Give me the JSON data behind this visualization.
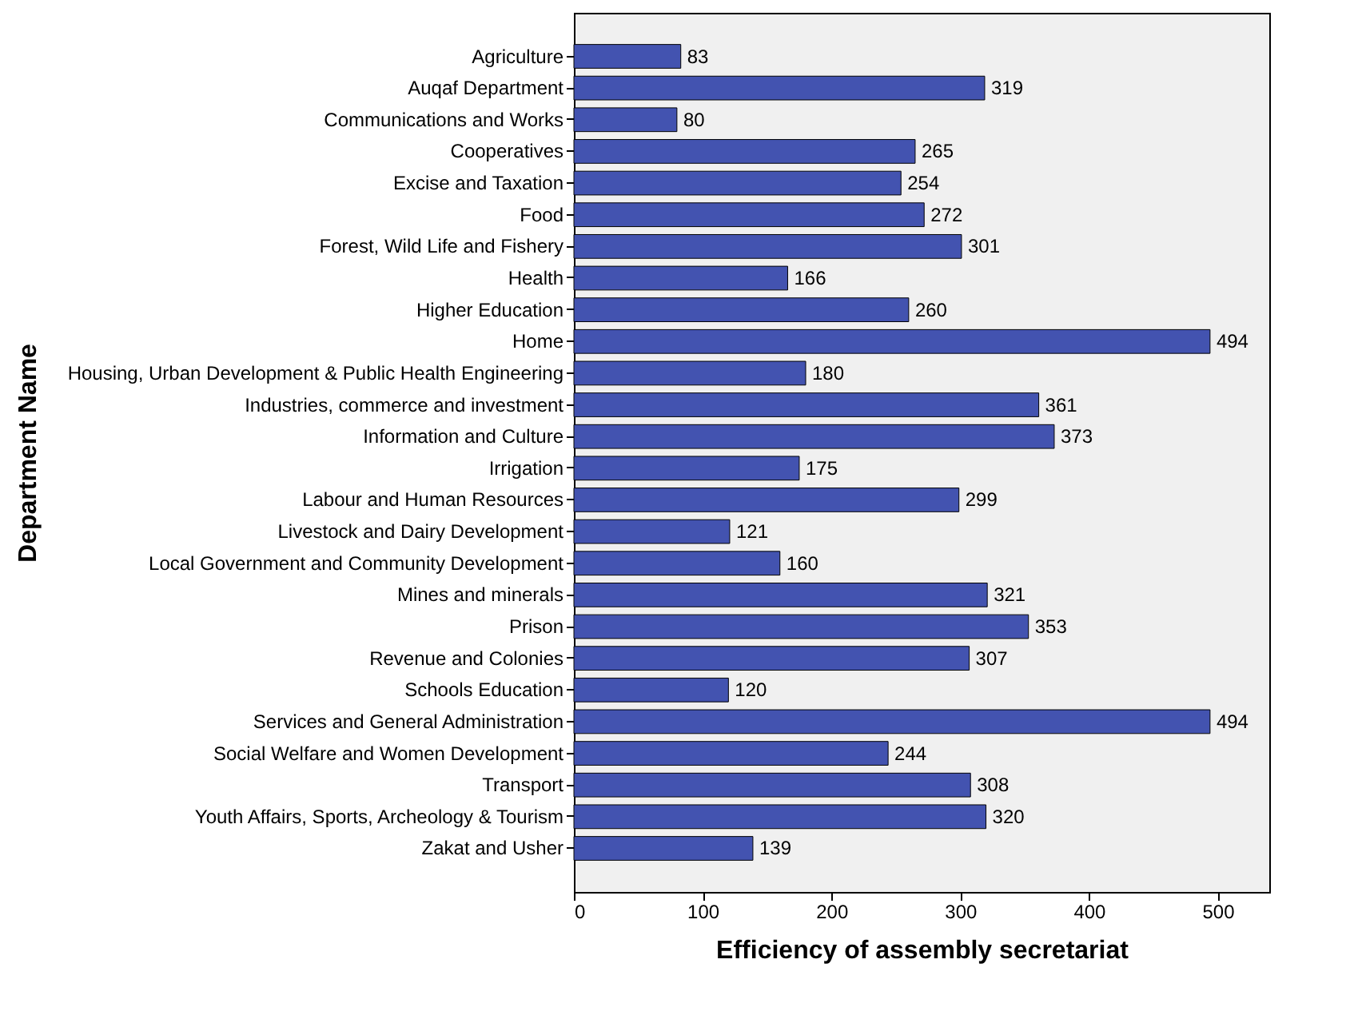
{
  "chart_data": {
    "type": "bar",
    "orientation": "horizontal",
    "xlabel": "Efficiency of assembly secretariat",
    "ylabel": "Department Name",
    "categories": [
      "Agriculture",
      "Auqaf Department",
      "Communications and Works",
      "Cooperatives",
      "Excise and Taxation",
      "Food",
      "Forest, Wild Life and Fishery",
      "Health",
      "Higher Education",
      "Home",
      "Housing, Urban Development & Public Health Engineering",
      "Industries, commerce and investment",
      "Information and Culture",
      "Irrigation",
      "Labour and Human Resources",
      "Livestock and Dairy Development",
      "Local Government and Community Development",
      "Mines and minerals",
      "Prison",
      "Revenue and Colonies",
      "Schools Education",
      "Services and General Administration",
      "Social Welfare and Women Development",
      "Transport",
      "Youth Affairs, Sports, Archeology & Tourism",
      "Zakat and Usher"
    ],
    "values": [
      83,
      319,
      80,
      265,
      254,
      272,
      301,
      166,
      260,
      494,
      180,
      361,
      373,
      175,
      299,
      121,
      160,
      321,
      353,
      307,
      120,
      494,
      244,
      308,
      320,
      139
    ],
    "color": "#4353b0",
    "xlim": [
      0,
      540
    ],
    "xticks": [
      0,
      100,
      200,
      300,
      400,
      500
    ],
    "grid": false,
    "data_labels": true
  }
}
